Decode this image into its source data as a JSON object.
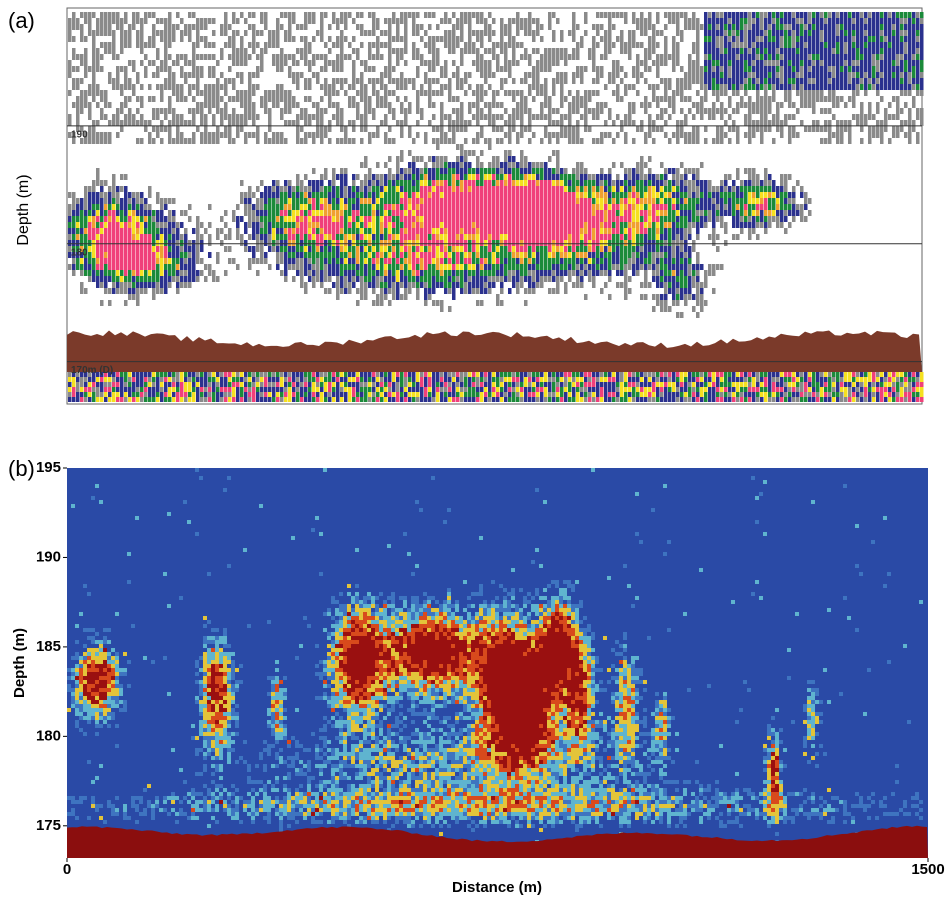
{
  "panels": [
    {
      "tag": "(a)",
      "ylabel": "Depth (m)",
      "ylim": [
        166.4,
        200
      ],
      "yticks": [
        {
          "value": 170,
          "label": "170m (D)"
        },
        180,
        190
      ]
    },
    {
      "tag": "(b)",
      "ylabel": "Depth (m)",
      "xlabel": "Distance (m)",
      "ylim": [
        173.2,
        195
      ],
      "yticks": [
        175,
        180,
        185,
        190,
        195
      ],
      "xlim": [
        0,
        1500
      ],
      "xticks": [
        0,
        1500
      ]
    }
  ]
}
